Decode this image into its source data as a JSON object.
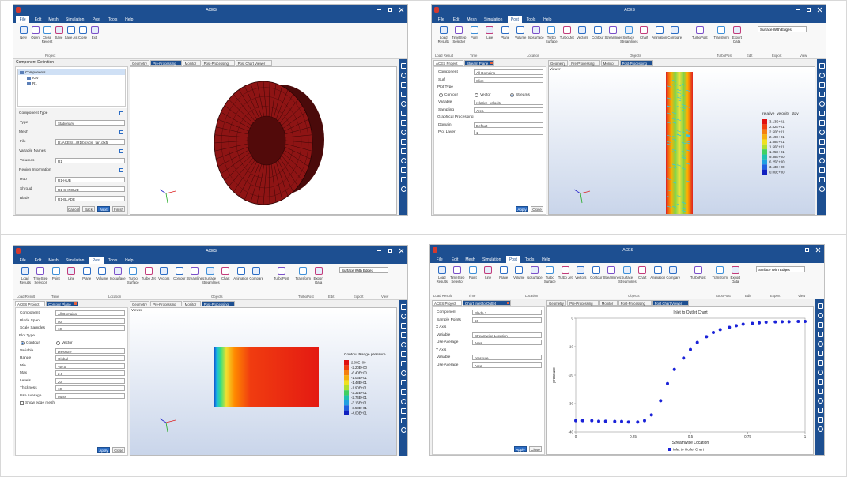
{
  "panels": [
    {
      "title": "ACES",
      "menu": [
        "File",
        "Edit",
        "Mesh",
        "Simulation",
        "Post",
        "Tools",
        "Help"
      ],
      "active_menu": 0,
      "ribbon": [
        "New",
        "Open",
        "Close Recent",
        "Save",
        "Save As",
        "Close",
        "Exit"
      ],
      "ribbon_groups": [
        "Project"
      ],
      "left_title": "Component Definition",
      "tree": [
        "Components",
        "IGV",
        "R1"
      ],
      "form": [
        {
          "heading": "Component Type"
        },
        {
          "label": "Type",
          "value": "Stationary"
        },
        {
          "heading": "Mesh"
        },
        {
          "label": "File",
          "value": "D:/ACES/.../R1/bicycle_fan.cfx5"
        },
        {
          "heading": "Variable Names"
        },
        {
          "label": "Volumes",
          "value": "R1"
        },
        {
          "heading": "Region Information"
        },
        {
          "label": "Hub",
          "value": "R1-HUB"
        },
        {
          "label": "Shroud",
          "value": "R1-SHROUD"
        },
        {
          "label": "Blade",
          "value": "R1-BLADE"
        }
      ],
      "buttons": [
        "Cancel",
        "Back",
        "Next",
        "Finish"
      ],
      "primary_button": 2,
      "tabs": [
        "Geometry",
        "Pre-Processing",
        "Monitor",
        "Post-Processing",
        "Post Chart Viewer"
      ],
      "active_tab": 1,
      "view": "mesh"
    },
    {
      "title": "ACES",
      "menu": [
        "File",
        "Edit",
        "Mesh",
        "Simulation",
        "Post",
        "Tools",
        "Help"
      ],
      "active_menu": 4,
      "ribbon": [
        "Load Results",
        "TimeStep Selector",
        "Point",
        "Line",
        "Plane",
        "Volume",
        "Isosurface",
        "Turbo Surface",
        "Turbo Jet",
        "Vectors",
        "Contour",
        "Streamlines",
        "Surface Streamlines",
        "Chart",
        "Animation",
        "Compare",
        "TurboPost",
        "Transform",
        "Export Data"
      ],
      "dropdown": "Surface With Edges",
      "ribbon_groups": [
        "Load Result",
        "Time",
        "Location",
        "Objects",
        "TurboPost",
        "Edit",
        "Export",
        "View"
      ],
      "left_tabs": [
        "ACES Project",
        "Stream Plane"
      ],
      "form": [
        {
          "label": "Component",
          "value": "All Domains"
        },
        {
          "label": "Surf",
          "value": "Slice"
        },
        {
          "heading": "Plot Type"
        },
        {
          "options": [
            "Contour",
            "Vector",
            "Streams"
          ],
          "selected": 2
        },
        {
          "label": "Variable",
          "value": "relative_velocity"
        },
        {
          "label": "Sampling",
          "value": "Area"
        },
        {
          "heading": "Graphical Processing"
        },
        {
          "label": "Domain",
          "value": "Default"
        },
        {
          "label": "Plot Layer",
          "value": "1"
        }
      ],
      "buttons": [
        "Apply",
        "Close"
      ],
      "primary_button": 0,
      "tabs": [
        "Geometry",
        "Pre-Processing",
        "Monitor",
        "Post-Processing"
      ],
      "active_tab": 3,
      "viewer_title": "Viewer",
      "view": "streams",
      "legend": {
        "title": "relative_velocity_stdv",
        "labels": [
          "3.13E+01",
          "2.82E+01",
          "2.50E+01",
          "2.19E+01",
          "1.88E+01",
          "1.56E+01",
          "1.25E+01",
          "9.38E+00",
          "6.25E+00",
          "3.13E+00",
          "0.00E+00"
        ]
      }
    },
    {
      "title": "ACES",
      "menu": [
        "File",
        "Edit",
        "Mesh",
        "Simulation",
        "Post",
        "Tools",
        "Help"
      ],
      "active_menu": 4,
      "ribbon": [
        "Load Results",
        "TimeStep Selector",
        "Point",
        "Line",
        "Plane",
        "Volume",
        "Isosurface",
        "Turbo Surface",
        "Turbo Jet",
        "Vectors",
        "Contour",
        "Streamlines",
        "Surface Streamlines",
        "Chart",
        "Animation",
        "Compare",
        "TurboPost",
        "Transform",
        "Export Data"
      ],
      "dropdown": "Surface With Edges",
      "ribbon_groups": [
        "Load Result",
        "Time",
        "Location",
        "Objects",
        "TurboPost",
        "Edit",
        "Export",
        "View"
      ],
      "left_tabs": [
        "ACES Project",
        "Contour Plane"
      ],
      "form": [
        {
          "label": "Component",
          "value": "All Domains"
        },
        {
          "label": "Blade Span",
          "value": "50"
        },
        {
          "label": "Scale Samples",
          "value": "10"
        },
        {
          "heading": "Plot Type"
        },
        {
          "options": [
            "Contour",
            "Vector"
          ],
          "selected": 0
        },
        {
          "label": "Variable",
          "value": "pressure"
        },
        {
          "label": "Range",
          "value": "Global"
        },
        {
          "label": "Min",
          "value": "-40.0"
        },
        {
          "label": "Max",
          "value": "2.0"
        },
        {
          "label": "Levels",
          "value": "20"
        },
        {
          "label": "Thickness",
          "value": "10"
        },
        {
          "label": "Use Average",
          "value": "Mass"
        },
        {
          "check": "Show edge mesh"
        }
      ],
      "buttons": [
        "Apply",
        "Close"
      ],
      "primary_button": 0,
      "tabs": [
        "Geometry",
        "Pre-Processing",
        "Monitor",
        "Post-Processing"
      ],
      "active_tab": 3,
      "viewer_title": "Viewer",
      "view": "contour",
      "legend": {
        "title": "Contour Range pressure",
        "labels": [
          "2.00E+00",
          "-2.20E+00",
          "-6.40E+00",
          "-1.06E+01",
          "-1.48E+01",
          "-1.90E+01",
          "-2.32E+01",
          "-2.74E+01",
          "-3.16E+01",
          "-3.58E+01",
          "-4.00E+01"
        ]
      }
    },
    {
      "title": "ACES",
      "menu": [
        "File",
        "Edit",
        "Mesh",
        "Simulation",
        "Post",
        "Tools",
        "Help"
      ],
      "active_menu": 4,
      "ribbon": [
        "Load Results",
        "TimeStep Selector",
        "Point",
        "Line",
        "Plane",
        "Volume",
        "Isosurface",
        "Turbo Surface",
        "Turbo Jet",
        "Vectors",
        "Contour",
        "Streamlines",
        "Surface Streamlines",
        "Chart",
        "Animation",
        "Compare",
        "TurboPost",
        "Transform",
        "Export Data"
      ],
      "dropdown": "Surface With Edges",
      "ribbon_groups": [
        "Load Result",
        "Time",
        "Location",
        "Objects",
        "TurboPost",
        "Edit",
        "Export",
        "View"
      ],
      "left_tabs": [
        "ACES Project",
        "Chart Inlet to Outlet"
      ],
      "form": [
        {
          "label": "Component",
          "value": "Blade 1"
        },
        {
          "label": "Sample Points",
          "value": "50"
        },
        {
          "heading": "X Axis"
        },
        {
          "label": "Variable",
          "value": "Streamwise Location"
        },
        {
          "label": "Use Average",
          "value": "Area"
        },
        {
          "heading": "Y Axis"
        },
        {
          "label": "Variable",
          "value": "pressure"
        },
        {
          "label": "Use Average",
          "value": "Area"
        }
      ],
      "buttons": [
        "Apply",
        "Close"
      ],
      "primary_button": 0,
      "tabs": [
        "Geometry",
        "Pre-Processing",
        "Monitor",
        "Post-Processing",
        "Post Chart Viewer"
      ],
      "active_tab": 4,
      "view": "chart",
      "chart": {
        "type": "scatter",
        "title": "Inlet to Outlet Chart",
        "x_label": "Streamwise Location",
        "y_label": "pressure",
        "color": "#1a22d8",
        "series_name": "Inlet to Outlet Chart",
        "x": [
          0,
          0.03,
          0.07,
          0.1,
          0.13,
          0.17,
          0.2,
          0.23,
          0.27,
          0.3,
          0.33,
          0.37,
          0.4,
          0.43,
          0.47,
          0.5,
          0.53,
          0.57,
          0.6,
          0.63,
          0.67,
          0.7,
          0.73,
          0.77,
          0.8,
          0.83,
          0.87,
          0.9,
          0.93,
          0.97,
          1.0
        ],
        "values": [
          -36,
          -36,
          -36,
          -36.2,
          -36.2,
          -36.3,
          -36.3,
          -36.5,
          -36.5,
          -36,
          -34,
          -29,
          -23,
          -18,
          -14,
          -11,
          -8.5,
          -6.5,
          -5,
          -4,
          -3.2,
          -2.6,
          -2.1,
          -1.8,
          -1.6,
          -1.4,
          -1.3,
          -1.2,
          -1.2,
          -1.1,
          -1.1
        ],
        "xlim": [
          0,
          1
        ],
        "xticks": [
          0,
          0.25,
          0.5,
          0.75,
          1
        ],
        "ylim": [
          -40,
          0
        ],
        "yticks": [
          -40,
          -30,
          -20,
          -10,
          0
        ]
      }
    }
  ]
}
